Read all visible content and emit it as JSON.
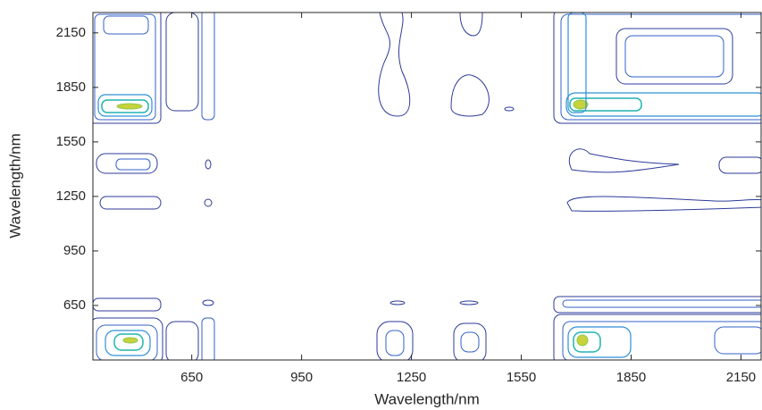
{
  "chart_data": {
    "type": "contour",
    "x_label": "Wavelength/nm",
    "y_label": "Wavelength/nm",
    "xlim": [
      380,
      2205
    ],
    "ylim": [
      350,
      2262
    ],
    "xticks": [
      650,
      950,
      1250,
      1550,
      1850,
      2150
    ],
    "yticks": [
      650,
      950,
      1250,
      1550,
      1850,
      2150
    ],
    "grid": false
  }
}
